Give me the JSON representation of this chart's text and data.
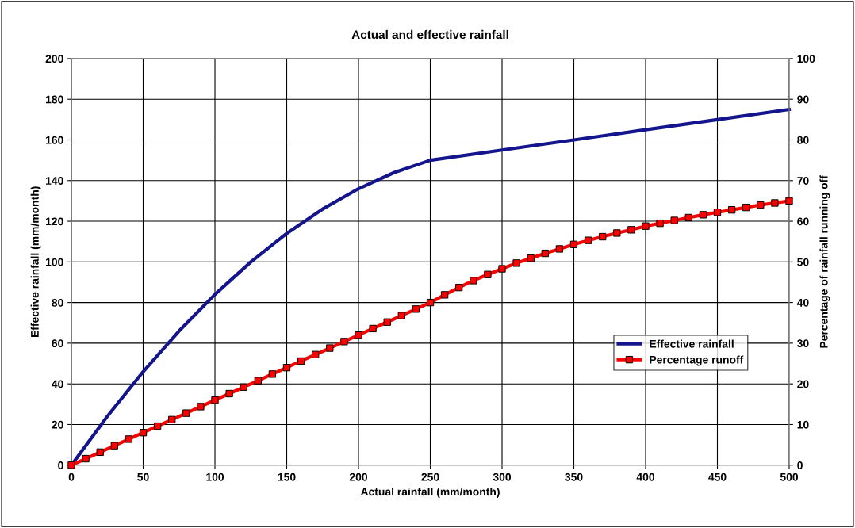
{
  "chart_data": {
    "type": "line",
    "title": "Actual and effective rainfall",
    "xlabel": "Actual rainfall (mm/month)",
    "ylabel": "Effective rainfall (mm/month)",
    "y2label": "Percentage of rainfall running off",
    "xlim": [
      0,
      500
    ],
    "xticks": [
      0,
      50,
      100,
      150,
      200,
      250,
      300,
      350,
      400,
      450,
      500
    ],
    "ylim": [
      0,
      200
    ],
    "yticks": [
      0,
      20,
      40,
      60,
      80,
      100,
      120,
      140,
      160,
      180,
      200
    ],
    "y2lim": [
      0,
      100
    ],
    "y2ticks": [
      0,
      10,
      20,
      30,
      40,
      50,
      60,
      70,
      80,
      90,
      100
    ],
    "grid": true,
    "legend": "lower right",
    "series": [
      {
        "name": "Effective rainfall",
        "color": "#14148c",
        "marker": "none",
        "x": [
          0,
          25,
          50,
          75,
          100,
          125,
          150,
          175,
          200,
          225,
          250,
          300,
          350,
          400,
          450,
          500
        ],
        "values": [
          0,
          24,
          46,
          66,
          84,
          100,
          114,
          126,
          136,
          144,
          150,
          155,
          160,
          165,
          170,
          175
        ]
      },
      {
        "name": "Percentage runoff",
        "color": "#ff0000",
        "marker": "square",
        "axis": "y2",
        "x": [
          0,
          10,
          20,
          30,
          40,
          50,
          60,
          70,
          80,
          90,
          100,
          110,
          120,
          130,
          140,
          150,
          160,
          170,
          180,
          190,
          200,
          210,
          220,
          230,
          240,
          250,
          260,
          270,
          280,
          290,
          300,
          310,
          320,
          330,
          340,
          350,
          360,
          370,
          380,
          390,
          400,
          410,
          420,
          430,
          440,
          450,
          460,
          470,
          480,
          490,
          500
        ],
        "values": [
          0,
          1.6,
          3.2,
          4.8,
          6.4,
          8.0,
          9.6,
          11.2,
          12.8,
          14.4,
          16.0,
          17.6,
          19.2,
          20.8,
          22.4,
          24.0,
          25.6,
          27.2,
          28.8,
          30.4,
          32.0,
          33.6,
          35.2,
          36.8,
          38.4,
          40.0,
          41.9,
          43.7,
          45.4,
          46.9,
          48.3,
          49.7,
          50.9,
          52.1,
          53.2,
          54.3,
          55.3,
          56.2,
          57.1,
          57.9,
          58.8,
          59.5,
          60.2,
          60.9,
          61.6,
          62.2,
          62.8,
          63.4,
          64.0,
          64.5,
          65.0
        ]
      }
    ]
  }
}
